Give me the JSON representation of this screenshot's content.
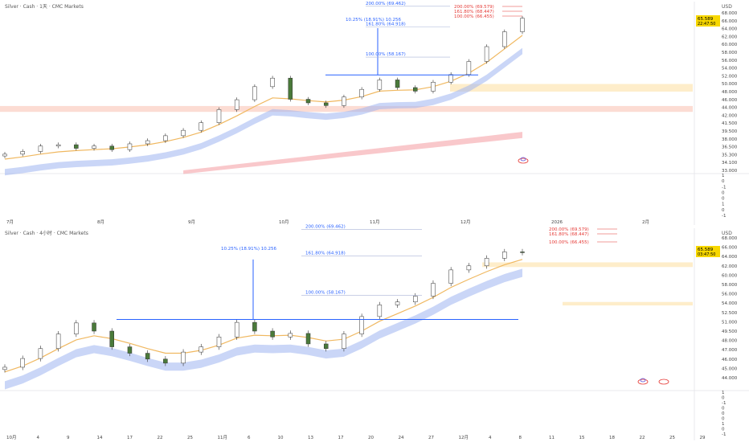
{
  "chart_data": [
    {
      "type": "candlestick",
      "title": "Silver · Cash · 1天 · CMC Markets",
      "currency": "USD",
      "price_label": "65.589",
      "countdown_label": "22:47:50",
      "x_ticks": [
        "7月",
        "8月",
        "9月",
        "10月",
        "11月",
        "12月",
        "2026",
        "2月"
      ],
      "y_ticks": [
        "68.000",
        "66.000",
        "64.000",
        "62.000",
        "60.000",
        "58.000",
        "56.000",
        "54.000",
        "52.000",
        "50.000",
        "48.000",
        "46.000",
        "44.000",
        "42.000",
        "41.500",
        "39.500",
        "38.000",
        "36.500",
        "35.300",
        "34.100",
        "33.000"
      ],
      "lower_ticks": [
        "1",
        "0",
        "-1",
        "0",
        "0",
        "1",
        "0",
        "-1"
      ],
      "fib_labels": [
        "200.00% (69.462)",
        "10.25% (18.91%) 10.256",
        "161.80% (64.918)",
        "100.00% (58.167)"
      ],
      "right_fib_labels": [
        "200.00% (69.579)",
        "161.80% (68.447)",
        "100.00% (66.455)"
      ],
      "series": [
        {
          "name": "price",
          "values": [
            36.6,
            37.2,
            38.4,
            38.7,
            37.9,
            38.4,
            37.6,
            38.9,
            39.6,
            40.7,
            41.9,
            43.6,
            46.5,
            48.7,
            51.6,
            53.5,
            48.8,
            48.0,
            47.4,
            49.3,
            51.0,
            53.1,
            51.4,
            50.6,
            52.6,
            54.3,
            57.2,
            60.5,
            63.8,
            66.8
          ]
        },
        {
          "name": "ema",
          "values": [
            35.5,
            36.0,
            36.6,
            37.1,
            37.4,
            37.6,
            37.8,
            38.2,
            38.7,
            39.4,
            40.3,
            41.5,
            43.2,
            45.1,
            47.2,
            49.1,
            48.9,
            48.5,
            48.2,
            48.6,
            49.4,
            50.6,
            50.8,
            50.9,
            51.6,
            52.8,
            54.6,
            57.0,
            60.0,
            63.0
          ]
        }
      ]
    },
    {
      "type": "candlestick",
      "title": "Silver · Cash · 4小时 · CMC Markets",
      "currency": "USD",
      "price_label": "65.589",
      "countdown_label": "03:47:50",
      "x_ticks": [
        "10月",
        "4",
        "9",
        "14",
        "17",
        "22",
        "25",
        "11月",
        "6",
        "10",
        "13",
        "17",
        "20",
        "24",
        "27",
        "12月",
        "4",
        "8",
        "11",
        "15",
        "18",
        "22",
        "25",
        "29"
      ],
      "y_ticks": [
        "68.000",
        "66.000",
        "64.000",
        "62.000",
        "60.000",
        "58.000",
        "56.000",
        "54.000",
        "52.500",
        "51.000",
        "49.500",
        "48.000",
        "47.000",
        "46.000",
        "45.000",
        "44.000"
      ],
      "lower_ticks": [
        "1",
        "0",
        "-1",
        "0",
        "0",
        "0",
        "1",
        "0",
        "-1"
      ],
      "fib_labels": [
        "200.00% (69.462)",
        "10.25% (18.91%) 10.256",
        "161.80% (64.918)",
        "100.00% (58.167)"
      ],
      "right_fib_labels": [
        "200.00% (69.579)",
        "161.80% (68.447)",
        "100.00% (66.455)"
      ],
      "series": [
        {
          "name": "price",
          "values": [
            45.8,
            47.3,
            49.0,
            51.5,
            53.4,
            52.0,
            49.3,
            48.2,
            47.2,
            46.5,
            48.4,
            49.3,
            51.0,
            53.5,
            52.0,
            51.0,
            51.6,
            49.8,
            49.0,
            51.5,
            54.5,
            56.5,
            57.0,
            58.0,
            60.2,
            62.5,
            63.2,
            64.5,
            65.6,
            65.5
          ]
        },
        {
          "name": "ema",
          "values": [
            45.0,
            46.0,
            47.4,
            49.0,
            50.5,
            51.2,
            50.7,
            49.9,
            49.0,
            48.2,
            48.2,
            48.7,
            49.6,
            50.8,
            51.3,
            51.2,
            51.3,
            50.9,
            50.3,
            50.6,
            52.0,
            53.7,
            55.0,
            56.3,
            57.8,
            59.5,
            60.9,
            62.2,
            63.4,
            64.3
          ]
        }
      ]
    }
  ]
}
